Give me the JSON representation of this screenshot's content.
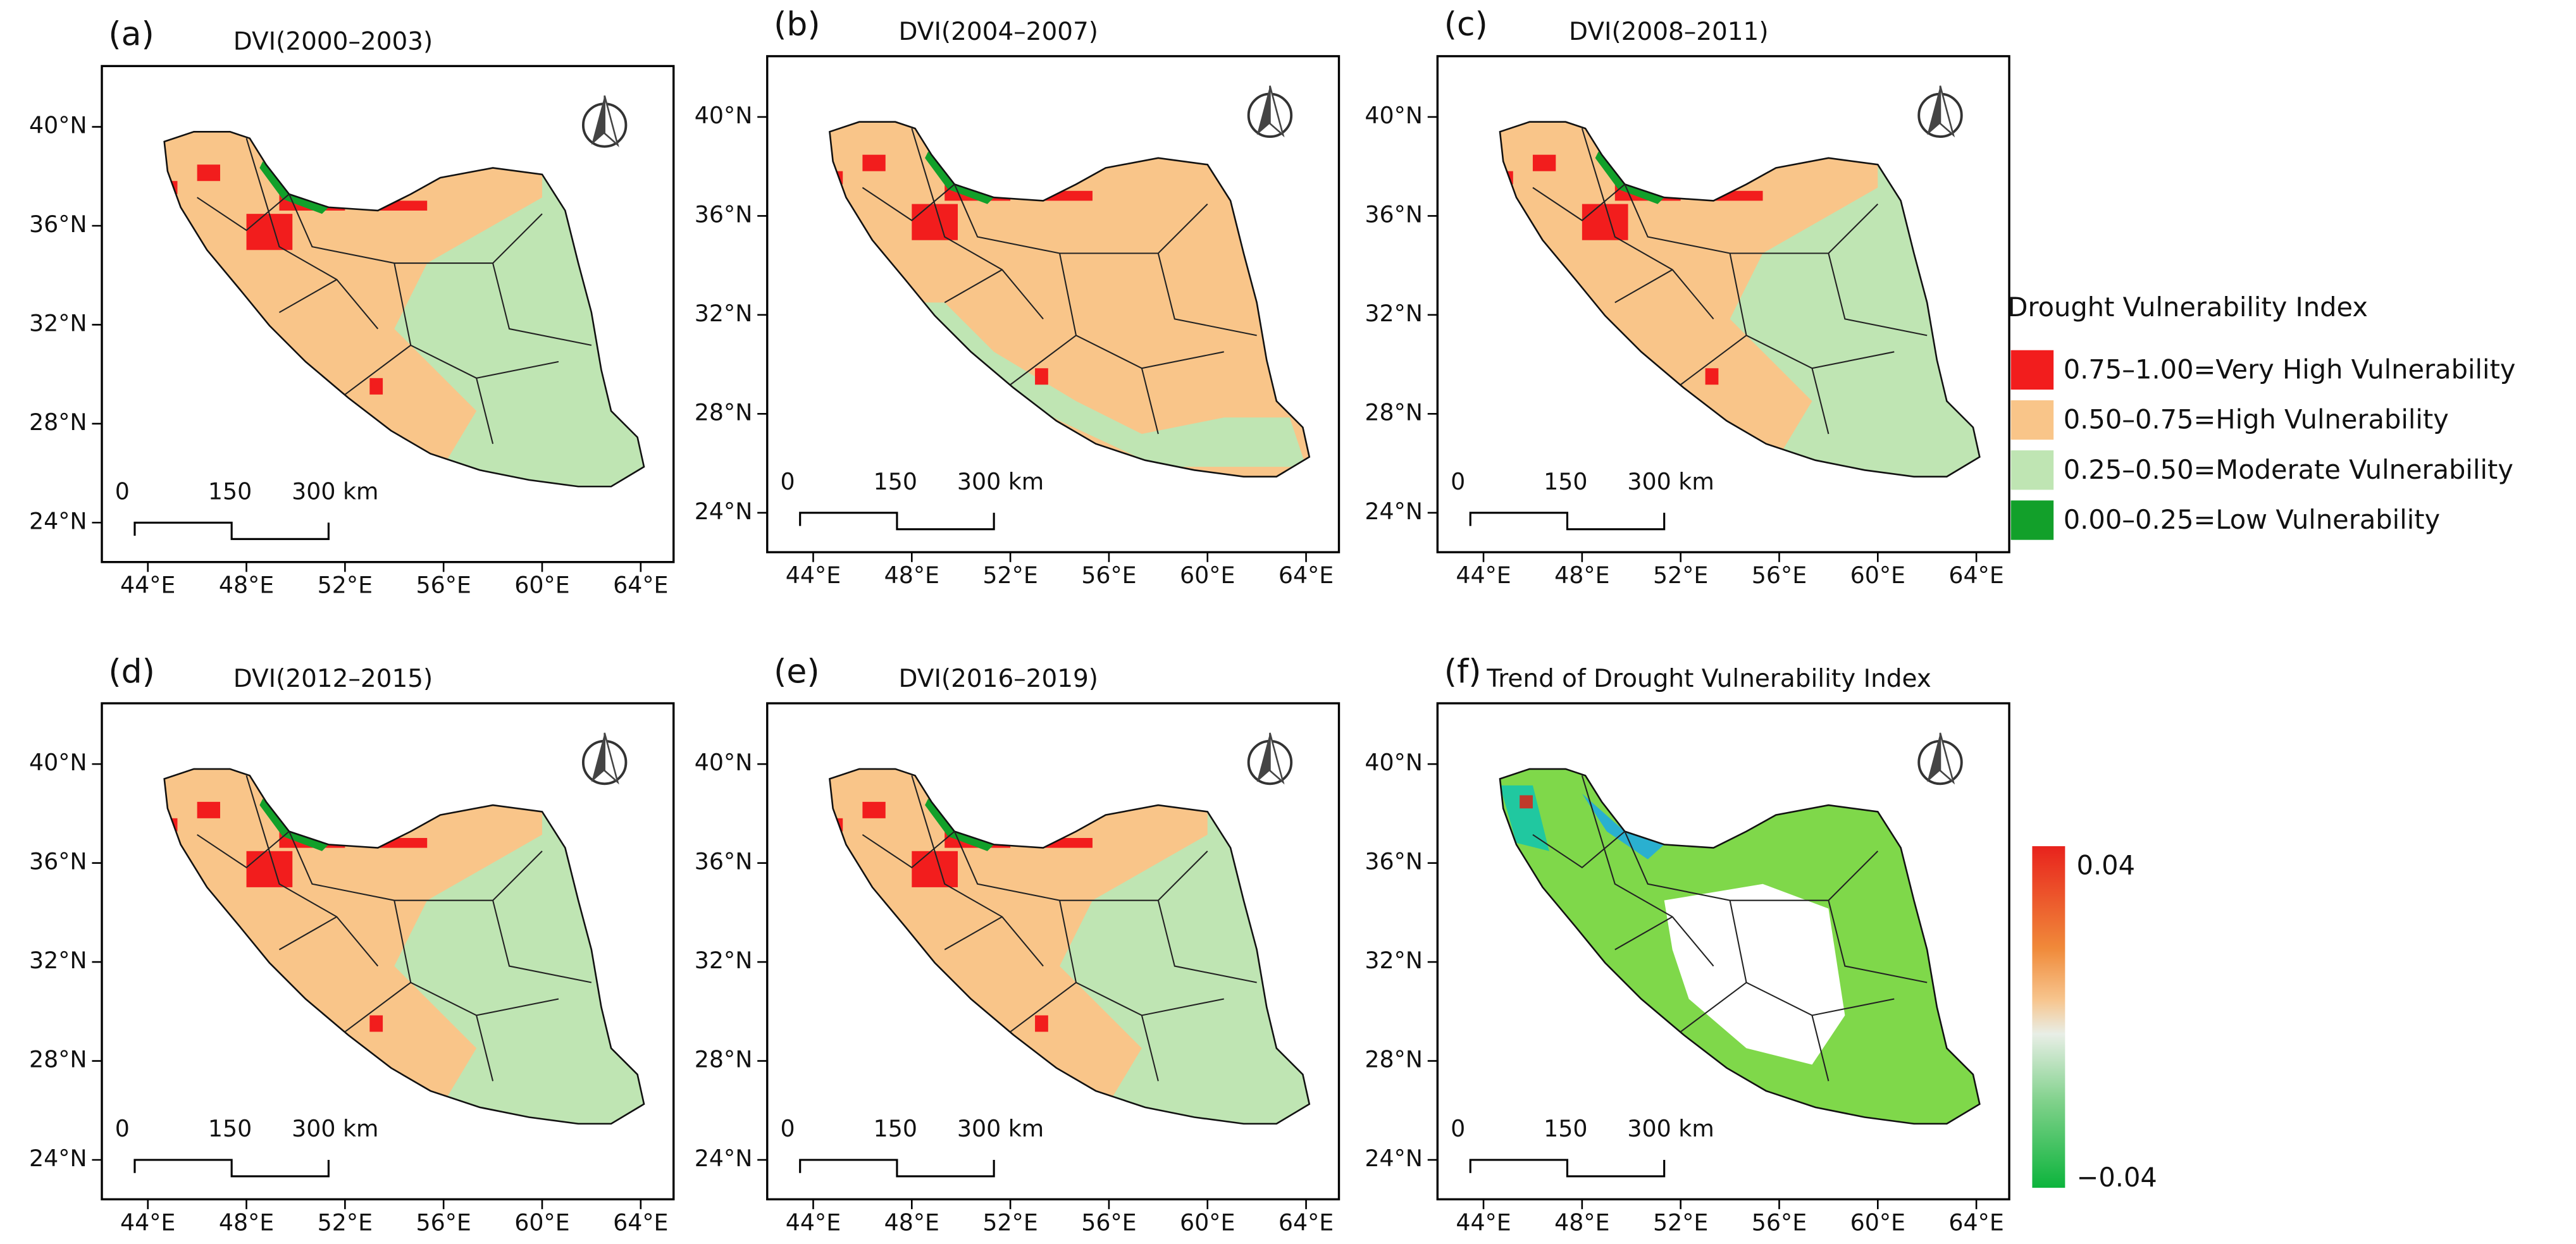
{
  "panels": [
    {
      "label": "(a)",
      "title": "DVI(2000–2003)",
      "style": "mix",
      "lat_ticks": [
        "40°N",
        "36°N",
        "32°N",
        "28°N",
        "24°N"
      ],
      "lon_ticks": [
        "44°E",
        "48°E",
        "52°E",
        "56°E",
        "60°E",
        "64°E"
      ],
      "scale_bar": [
        "0",
        "150",
        "300 km"
      ]
    },
    {
      "label": "(b)",
      "title": "DVI(2004–2007)",
      "style": "high",
      "lat_ticks": [
        "40°N",
        "36°N",
        "32°N",
        "28°N",
        "24°N"
      ],
      "lon_ticks": [
        "44°E",
        "48°E",
        "52°E",
        "56°E",
        "60°E",
        "64°E"
      ],
      "scale_bar": [
        "0",
        "150",
        "300 km"
      ]
    },
    {
      "label": "(c)",
      "title": "DVI(2008–2011)",
      "style": "mix",
      "lat_ticks": [
        "40°N",
        "36°N",
        "32°N",
        "28°N",
        "24°N"
      ],
      "lon_ticks": [
        "44°E",
        "48°E",
        "52°E",
        "56°E",
        "60°E",
        "64°E"
      ],
      "scale_bar": [
        "0",
        "150",
        "300 km"
      ]
    },
    {
      "label": "(d)",
      "title": "DVI(2012–2015)",
      "style": "mix",
      "lat_ticks": [
        "40°N",
        "36°N",
        "32°N",
        "28°N",
        "24°N"
      ],
      "lon_ticks": [
        "44°E",
        "48°E",
        "52°E",
        "56°E",
        "60°E",
        "64°E"
      ],
      "scale_bar": [
        "0",
        "150",
        "300 km"
      ]
    },
    {
      "label": "(e)",
      "title": "DVI(2016–2019)",
      "style": "mix",
      "lat_ticks": [
        "40°N",
        "36°N",
        "32°N",
        "28°N",
        "24°N"
      ],
      "lon_ticks": [
        "44°E",
        "48°E",
        "52°E",
        "56°E",
        "60°E",
        "64°E"
      ],
      "scale_bar": [
        "0",
        "150",
        "300 km"
      ]
    },
    {
      "label": "(f)",
      "title": "Trend of Drought Vulnerability Index",
      "style": "trend",
      "lat_ticks": [
        "40°N",
        "36°N",
        "32°N",
        "28°N",
        "24°N"
      ],
      "lon_ticks": [
        "44°E",
        "48°E",
        "52°E",
        "56°E",
        "60°E",
        "64°E"
      ],
      "scale_bar": [
        "0",
        "150",
        "300 km"
      ]
    }
  ],
  "legend": {
    "title": "Drought Vulnerability Index",
    "items": [
      {
        "label": "0.75–1.00=Very High Vulnerability",
        "color": "#f21d1d"
      },
      {
        "label": "0.50–0.75=High Vulnerability",
        "color": "#f9c589"
      },
      {
        "label": "0.25–0.50=Moderate Vulnerability",
        "color": "#bfe5b3"
      },
      {
        "label": "0.00–0.25=Low Vulnerability",
        "color": "#12a02a"
      }
    ]
  },
  "colorbar": {
    "max_label": "0.04",
    "min_label": "−0.04"
  }
}
